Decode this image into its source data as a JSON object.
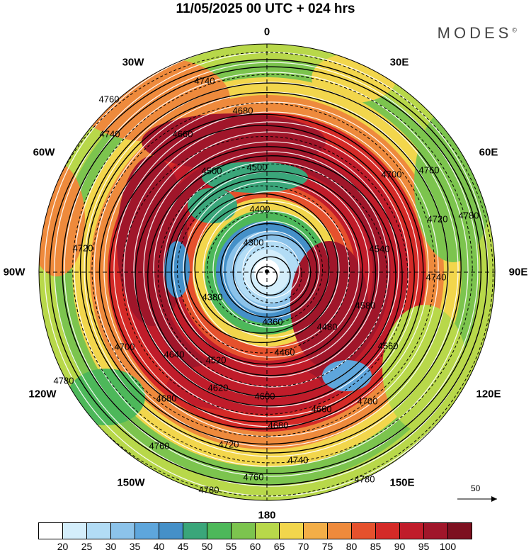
{
  "title": "11/05/2025  00 UTC  + 024 hrs",
  "brand": "MODES",
  "brand_mark": "©",
  "longitude_labels": [
    "0",
    "30E",
    "60E",
    "90E",
    "120E",
    "150E",
    "180",
    "150W",
    "120W",
    "90W",
    "60W",
    "30W"
  ],
  "contour_labels": [
    "4300",
    "4360",
    "4380",
    "4400",
    "4460",
    "4480",
    "4500",
    "4520",
    "4540",
    "4560",
    "4580",
    "4600",
    "4620",
    "4640",
    "4660",
    "4680",
    "4700",
    "4720",
    "4740",
    "4760",
    "4780"
  ],
  "colorbar": {
    "ticks": [
      "20",
      "25",
      "30",
      "35",
      "40",
      "45",
      "50",
      "55",
      "60",
      "65",
      "70",
      "75",
      "80",
      "85",
      "90",
      "95",
      "100"
    ],
    "colors": [
      "#ffffff",
      "#d4eefb",
      "#b2dcf5",
      "#8cc3ea",
      "#5ea6dc",
      "#4590c8",
      "#3aa67a",
      "#4db85a",
      "#7cc44e",
      "#b8d84a",
      "#f2d64c",
      "#f3ae47",
      "#ee8a3c",
      "#e5512d",
      "#d42a27",
      "#c01c2a",
      "#a0162a",
      "#7d1020"
    ]
  },
  "vector_reference": "50",
  "map": {
    "projection": "north polar stereographic",
    "field": "500 hPa geopotential height (m) and wind speed (kt)"
  }
}
